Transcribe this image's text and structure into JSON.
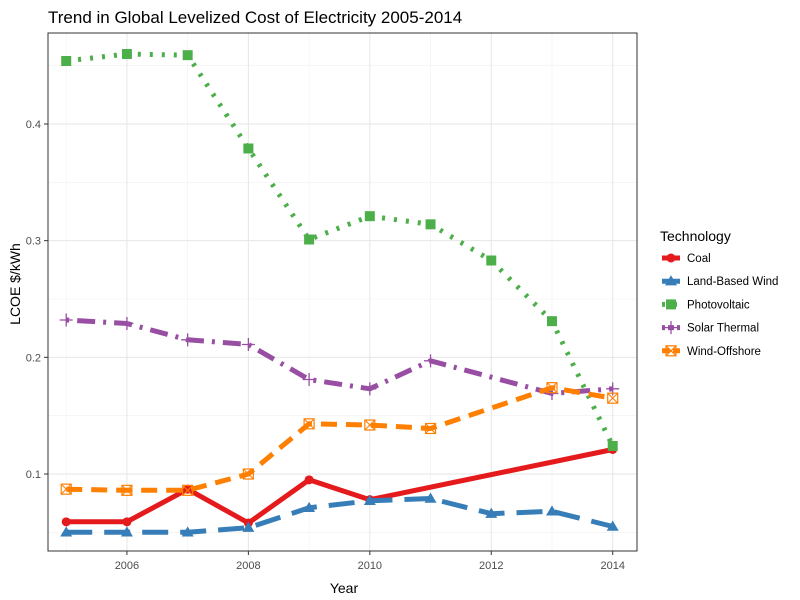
{
  "chart_data": {
    "type": "line",
    "title": "Trend in Global Levelized Cost of Electricity 2005-2014",
    "xlabel": "Year",
    "ylabel": "LCOE $/kWh",
    "xlim": [
      2004.7,
      2014.4
    ],
    "ylim": [
      0.034,
      0.478
    ],
    "x_ticks": [
      2006,
      2008,
      2010,
      2012,
      2014
    ],
    "y_ticks": [
      0.1,
      0.2,
      0.3,
      0.4
    ],
    "y_tick_labels": [
      "0.1",
      "0.2",
      "0.3",
      "0.4"
    ],
    "grid": true,
    "legend": {
      "title": "Technology",
      "placement": "right"
    },
    "series": [
      {
        "name": "Coal",
        "color": "#e41a1c",
        "linestyle": "solid",
        "marker": "circle",
        "points": [
          [
            2005,
            0.059
          ],
          [
            2006,
            0.059
          ],
          [
            2007,
            0.087
          ],
          [
            2008,
            0.058
          ],
          [
            2009,
            0.095
          ],
          [
            2010,
            0.078
          ],
          [
            2014,
            0.121
          ]
        ]
      },
      {
        "name": "Land-Based Wind",
        "color": "#377eb8",
        "linestyle": "longdash",
        "marker": "triangle",
        "points": [
          [
            2005,
            0.05
          ],
          [
            2006,
            0.05
          ],
          [
            2007,
            0.05
          ],
          [
            2008,
            0.054
          ],
          [
            2009,
            0.071
          ],
          [
            2010,
            0.077
          ],
          [
            2011,
            0.079
          ],
          [
            2012,
            0.066
          ],
          [
            2013,
            0.068
          ],
          [
            2014,
            0.055
          ]
        ]
      },
      {
        "name": "Photovoltaic",
        "color": "#4daf4a",
        "linestyle": "dotted",
        "marker": "square",
        "points": [
          [
            2005,
            0.454
          ],
          [
            2006,
            0.46
          ],
          [
            2007,
            0.459
          ],
          [
            2008,
            0.379
          ],
          [
            2009,
            0.301
          ],
          [
            2010,
            0.321
          ],
          [
            2011,
            0.314
          ],
          [
            2012,
            0.283
          ],
          [
            2013,
            0.231
          ],
          [
            2014,
            0.124
          ]
        ]
      },
      {
        "name": "Solar Thermal",
        "color": "#984ea3",
        "linestyle": "dotdash",
        "marker": "plus",
        "points": [
          [
            2005,
            0.232
          ],
          [
            2006,
            0.229
          ],
          [
            2007,
            0.215
          ],
          [
            2008,
            0.211
          ],
          [
            2009,
            0.181
          ],
          [
            2010,
            0.173
          ],
          [
            2011,
            0.197
          ],
          [
            2013,
            0.169
          ],
          [
            2014,
            0.173
          ]
        ]
      },
      {
        "name": "Wind-Offshore",
        "color": "#ff7f00",
        "linestyle": "dashed",
        "marker": "squarecross",
        "points": [
          [
            2005,
            0.087
          ],
          [
            2006,
            0.086
          ],
          [
            2007,
            0.086
          ],
          [
            2008,
            0.1
          ],
          [
            2009,
            0.143
          ],
          [
            2010,
            0.142
          ],
          [
            2011,
            0.139
          ],
          [
            2013,
            0.174
          ],
          [
            2014,
            0.165
          ]
        ]
      }
    ]
  }
}
